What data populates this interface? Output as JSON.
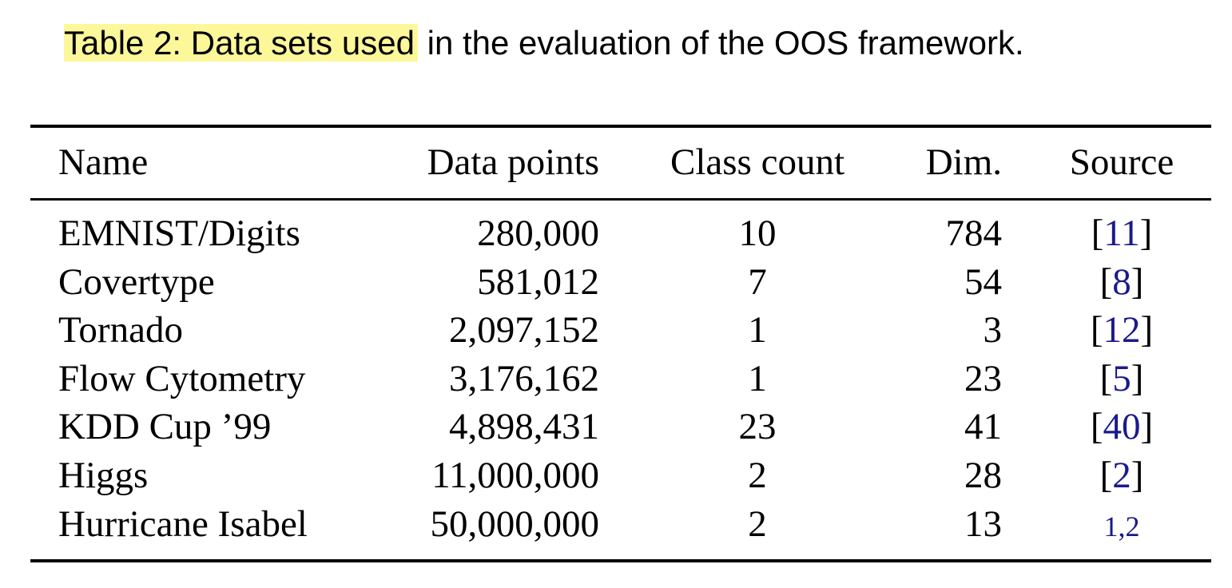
{
  "caption": {
    "highlighted": "Table 2: Data sets used",
    "rest": " in the evaluation of the OOS framework."
  },
  "table": {
    "headers": {
      "name": "Name",
      "points": "Data points",
      "class_count": "Class count",
      "dim": "Dim.",
      "source": "Source"
    },
    "rows": [
      {
        "name": "EMNIST/Digits",
        "points": "280,000",
        "class_count": "10",
        "dim": "784",
        "source": "11",
        "bracketed": true
      },
      {
        "name": "Covertype",
        "points": "581,012",
        "class_count": "7",
        "dim": "54",
        "source": "8",
        "bracketed": true
      },
      {
        "name": "Tornado",
        "points": "2,097,152",
        "class_count": "1",
        "dim": "3",
        "source": "12",
        "bracketed": true
      },
      {
        "name": "Flow Cytometry",
        "points": "3,176,162",
        "class_count": "1",
        "dim": "23",
        "source": "5",
        "bracketed": true
      },
      {
        "name": "KDD Cup ’99",
        "points": "4,898,431",
        "class_count": "23",
        "dim": "41",
        "source": "40",
        "bracketed": true
      },
      {
        "name": "Higgs",
        "points": "11,000,000",
        "class_count": "2",
        "dim": "28",
        "source": "2",
        "bracketed": true
      },
      {
        "name": "Hurricane Isabel",
        "points": "50,000,000",
        "class_count": "2",
        "dim": "13",
        "source": "1,2",
        "bracketed": false
      }
    ]
  },
  "colors": {
    "highlight": "#fcf89a",
    "reference_link": "#1a1a8c"
  }
}
